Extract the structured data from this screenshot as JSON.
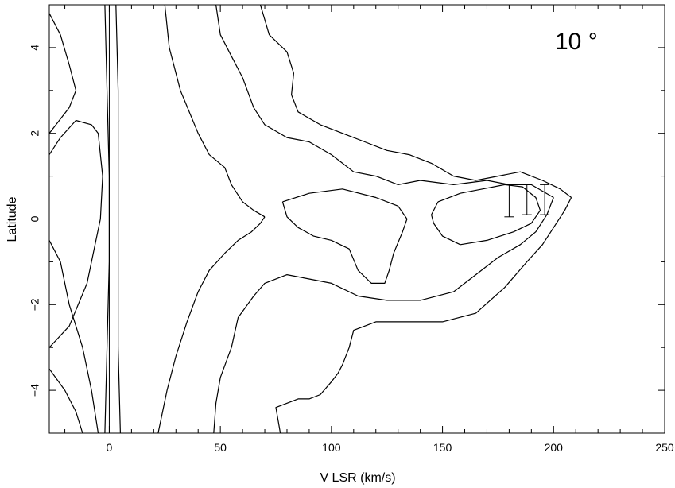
{
  "chart_data": {
    "type": "contour",
    "xlabel": "V LSR (km/s)",
    "ylabel": "Latitude",
    "panel_label": "10 °",
    "xlim": [
      -27,
      250
    ],
    "ylim": [
      -5,
      5
    ],
    "x_ticks": [
      0,
      50,
      100,
      150,
      200,
      250
    ],
    "y_ticks": [
      -4,
      -2,
      0,
      2,
      4
    ],
    "x_ticklabels": [
      "0",
      "50",
      "100",
      "150",
      "200",
      "250"
    ],
    "y_ticklabels": [
      "−4",
      "−2",
      "0",
      "2",
      "4"
    ],
    "reference_lines": {
      "x": 0,
      "y": 0
    },
    "contours": [
      {
        "name": "outer-upper",
        "points": [
          [
            68,
            5
          ],
          [
            72,
            4.3
          ],
          [
            80,
            3.9
          ],
          [
            83,
            3.4
          ],
          [
            82,
            2.9
          ],
          [
            85,
            2.5
          ],
          [
            95,
            2.2
          ],
          [
            105,
            2.0
          ],
          [
            115,
            1.8
          ],
          [
            125,
            1.6
          ],
          [
            135,
            1.5
          ],
          [
            145,
            1.3
          ],
          [
            155,
            1.0
          ],
          [
            165,
            0.9
          ],
          [
            175,
            1.0
          ],
          [
            185,
            1.1
          ],
          [
            195,
            0.9
          ],
          [
            203,
            0.7
          ],
          [
            208,
            0.5
          ]
        ]
      },
      {
        "name": "outer-lower",
        "points": [
          [
            208,
            0.5
          ],
          [
            205,
            0.2
          ],
          [
            200,
            -0.2
          ],
          [
            195,
            -0.6
          ],
          [
            188,
            -1.0
          ],
          [
            178,
            -1.6
          ],
          [
            165,
            -2.2
          ],
          [
            150,
            -2.4
          ],
          [
            135,
            -2.4
          ],
          [
            120,
            -2.4
          ],
          [
            110,
            -2.6
          ],
          [
            108,
            -3.0
          ],
          [
            105,
            -3.4
          ],
          [
            103,
            -3.6
          ],
          [
            100,
            -3.8
          ],
          [
            95,
            -4.1
          ],
          [
            90,
            -4.2
          ],
          [
            85,
            -4.2
          ],
          [
            80,
            -4.3
          ],
          [
            75,
            -4.4
          ],
          [
            77,
            -5.0
          ]
        ]
      },
      {
        "name": "second-upper",
        "points": [
          [
            48,
            5
          ],
          [
            50,
            4.3
          ],
          [
            55,
            3.8
          ],
          [
            60,
            3.3
          ],
          [
            65,
            2.6
          ],
          [
            70,
            2.2
          ],
          [
            80,
            1.9
          ],
          [
            90,
            1.8
          ],
          [
            100,
            1.5
          ],
          [
            110,
            1.1
          ],
          [
            120,
            1.0
          ],
          [
            130,
            0.8
          ],
          [
            140,
            0.9
          ],
          [
            155,
            0.8
          ],
          [
            170,
            0.9
          ],
          [
            180,
            0.8
          ],
          [
            190,
            0.8
          ],
          [
            200,
            0.5
          ]
        ]
      },
      {
        "name": "second-lower",
        "points": [
          [
            200,
            0.5
          ],
          [
            197,
            0.1
          ],
          [
            192,
            -0.3
          ],
          [
            185,
            -0.6
          ],
          [
            175,
            -0.9
          ],
          [
            165,
            -1.3
          ],
          [
            155,
            -1.7
          ],
          [
            140,
            -1.9
          ],
          [
            125,
            -1.9
          ],
          [
            112,
            -1.8
          ],
          [
            100,
            -1.5
          ],
          [
            90,
            -1.4
          ],
          [
            80,
            -1.3
          ],
          [
            70,
            -1.5
          ],
          [
            65,
            -1.8
          ],
          [
            58,
            -2.3
          ],
          [
            55,
            -3.0
          ],
          [
            50,
            -3.7
          ],
          [
            48,
            -4.3
          ],
          [
            47,
            -5.0
          ]
        ]
      },
      {
        "name": "third-upper",
        "points": [
          [
            25,
            5
          ],
          [
            27,
            4.0
          ],
          [
            32,
            3.0
          ],
          [
            40,
            2.0
          ],
          [
            45,
            1.5
          ],
          [
            52,
            1.2
          ],
          [
            55,
            0.8
          ],
          [
            60,
            0.4
          ],
          [
            65,
            0.2
          ],
          [
            70,
            0.05
          ]
        ]
      },
      {
        "name": "third-lower",
        "points": [
          [
            70,
            0.05
          ],
          [
            68,
            -0.1
          ],
          [
            64,
            -0.3
          ],
          [
            58,
            -0.5
          ],
          [
            52,
            -0.8
          ],
          [
            45,
            -1.2
          ],
          [
            40,
            -1.7
          ],
          [
            35,
            -2.4
          ],
          [
            30,
            -3.2
          ],
          [
            26,
            -4.0
          ],
          [
            22,
            -5.0
          ]
        ]
      },
      {
        "name": "central-pocket",
        "points": [
          [
            78,
            0.4
          ],
          [
            90,
            0.6
          ],
          [
            105,
            0.7
          ],
          [
            120,
            0.5
          ],
          [
            130,
            0.3
          ],
          [
            134,
            0.0
          ],
          [
            132,
            -0.3
          ],
          [
            128,
            -0.8
          ],
          [
            126,
            -1.2
          ],
          [
            124,
            -1.5
          ],
          [
            118,
            -1.5
          ],
          [
            112,
            -1.2
          ],
          [
            108,
            -0.7
          ],
          [
            100,
            -0.5
          ],
          [
            92,
            -0.4
          ],
          [
            85,
            -0.2
          ],
          [
            80,
            0.05
          ],
          [
            78,
            0.4
          ]
        ]
      },
      {
        "name": "inner-peak",
        "points": [
          [
            148,
            0.4
          ],
          [
            158,
            0.6
          ],
          [
            168,
            0.7
          ],
          [
            178,
            0.8
          ],
          [
            186,
            0.75
          ],
          [
            192,
            0.5
          ],
          [
            194,
            0.2
          ],
          [
            190,
            -0.1
          ],
          [
            182,
            -0.3
          ],
          [
            170,
            -0.5
          ],
          [
            158,
            -0.6
          ],
          [
            150,
            -0.4
          ],
          [
            146,
            -0.1
          ],
          [
            145,
            0.1
          ],
          [
            148,
            0.4
          ]
        ]
      }
    ],
    "error_bars": [
      {
        "x": 180,
        "y_low": 0.05,
        "y_high": 0.8
      },
      {
        "x": 188,
        "y_low": 0.1,
        "y_high": 0.8
      },
      {
        "x": 196,
        "y_low": 0.1,
        "y_high": 0.8
      }
    ],
    "left_edge_contours": [
      {
        "name": "left-1",
        "points": [
          [
            -27,
            4.8
          ],
          [
            -22,
            4.3
          ],
          [
            -18,
            3.6
          ],
          [
            -15,
            3.0
          ],
          [
            -18,
            2.6
          ],
          [
            -27,
            2.0
          ]
        ]
      },
      {
        "name": "left-2",
        "points": [
          [
            -27,
            1.5
          ],
          [
            -22,
            1.9
          ],
          [
            -15,
            2.3
          ],
          [
            -8,
            2.2
          ],
          [
            -5,
            2.0
          ],
          [
            -3,
            1.0
          ],
          [
            -4,
            0.0
          ],
          [
            -6,
            -0.5
          ],
          [
            -10,
            -1.5
          ],
          [
            -18,
            -2.5
          ],
          [
            -27,
            -3.0
          ]
        ]
      },
      {
        "name": "left-3",
        "points": [
          [
            -2,
            5.0
          ],
          [
            -1,
            3.0
          ],
          [
            0,
            1.0
          ],
          [
            0,
            -1.0
          ],
          [
            -1,
            -3.0
          ],
          [
            -2,
            -5.0
          ]
        ]
      },
      {
        "name": "left-4",
        "points": [
          [
            -27,
            -0.5
          ],
          [
            -22,
            -1.0
          ],
          [
            -18,
            -2.0
          ],
          [
            -12,
            -3.0
          ],
          [
            -8,
            -4.0
          ],
          [
            -5,
            -5.0
          ]
        ]
      },
      {
        "name": "left-5",
        "points": [
          [
            -27,
            -3.5
          ],
          [
            -20,
            -4.0
          ],
          [
            -15,
            -4.5
          ],
          [
            -12,
            -5.0
          ]
        ]
      },
      {
        "name": "left-6",
        "points": [
          [
            3,
            5.0
          ],
          [
            4,
            3.0
          ],
          [
            4,
            1.0
          ],
          [
            4,
            -1.0
          ],
          [
            4,
            -3.0
          ],
          [
            5,
            -5.0
          ]
        ]
      }
    ]
  }
}
